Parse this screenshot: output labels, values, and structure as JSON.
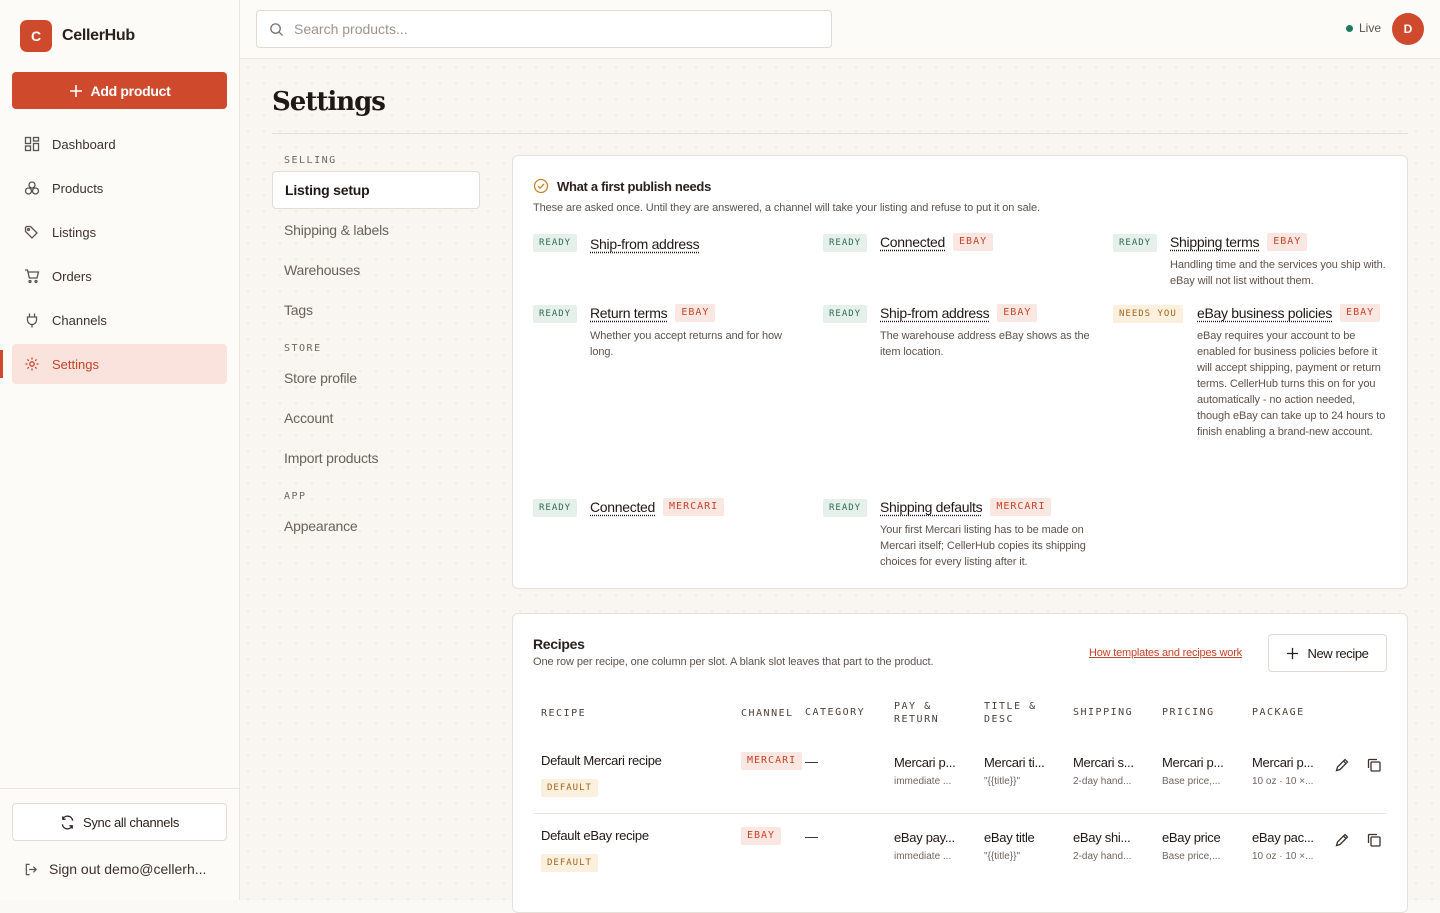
{
  "brand": {
    "logo_letter": "C",
    "name": "CellerHub",
    "accent": "#cf4a2d"
  },
  "sidebar": {
    "add_product": "Add product",
    "items": [
      {
        "label": "Dashboard",
        "icon": "dashboard-icon"
      },
      {
        "label": "Products",
        "icon": "products-icon"
      },
      {
        "label": "Listings",
        "icon": "tag-icon"
      },
      {
        "label": "Orders",
        "icon": "cart-icon"
      },
      {
        "label": "Channels",
        "icon": "plug-icon"
      },
      {
        "label": "Settings",
        "icon": "gear-icon",
        "active": true
      }
    ],
    "sync": "Sync all channels",
    "signout": "Sign out demo@cellerh..."
  },
  "topbar": {
    "search_placeholder": "Search products...",
    "status": "Live",
    "avatar": "D"
  },
  "page": {
    "title": "Settings"
  },
  "subnav": {
    "selling_head": "SELLING",
    "selling": [
      "Listing setup",
      "Shipping & labels",
      "Warehouses",
      "Tags"
    ],
    "store_head": "STORE",
    "store": [
      "Store profile",
      "Account",
      "Import products"
    ],
    "app_head": "APP",
    "app": [
      "Appearance"
    ]
  },
  "publish": {
    "title": "What a first publish needs",
    "subtitle": "These are asked once. Until they are answered, a channel will take your listing and refuse to put it on sale.",
    "items": [
      {
        "status": "READY",
        "title": "Ship-from address",
        "tag": "",
        "desc": ""
      },
      {
        "status": "READY",
        "title": "Connected",
        "tag": "EBAY",
        "desc": ""
      },
      {
        "status": "READY",
        "title": "Shipping terms",
        "tag": "EBAY",
        "desc": "Handling time and the services you ship with. eBay will not list without them."
      },
      {
        "status": "READY",
        "title": "Return terms",
        "tag": "EBAY",
        "desc": "Whether you accept returns and for how long."
      },
      {
        "status": "READY",
        "title": "Ship-from address",
        "tag": "EBAY",
        "desc": "The warehouse address eBay shows as the item location."
      },
      {
        "status": "NEEDS YOU",
        "title": "eBay business policies",
        "tag": "EBAY",
        "desc": "eBay requires your account to be enabled for business policies before it will accept shipping, payment or return terms. CellerHub turns this on for you automatically - no action needed, though eBay can take up to 24 hours to finish enabling a brand-new account."
      },
      {
        "status": "READY",
        "title": "Connected",
        "tag": "MERCARI",
        "desc": ""
      },
      {
        "status": "READY",
        "title": "Shipping defaults",
        "tag": "MERCARI",
        "desc": "Your first Mercari listing has to be made on Mercari itself; CellerHub copies its shipping choices for every listing after it."
      }
    ]
  },
  "recipes": {
    "title": "Recipes",
    "subtitle": "One row per recipe, one column per slot. A blank slot leaves that part to the product.",
    "help_link": "How templates and recipes work",
    "new_button": "New recipe",
    "columns": [
      "RECIPE",
      "CHANNEL",
      "CATEGORY",
      "PAY & RETURN",
      "TITLE & DESC",
      "SHIPPING",
      "PRICING",
      "PACKAGE"
    ],
    "rows": [
      {
        "name": "Default Mercari recipe",
        "badge": "DEFAULT",
        "channel": "MERCARI",
        "category": "—",
        "pay": "Mercari p...",
        "pay_sub": "immediate ...",
        "title": "Mercari ti...",
        "title_sub": "\"{{title}}\"",
        "shipping": "Mercari s...",
        "shipping_sub": "2-day hand...",
        "pricing": "Mercari p...",
        "pricing_sub": "Base price,...",
        "package": "Mercari p...",
        "package_sub": "10 oz · 10 ×..."
      },
      {
        "name": "Default eBay recipe",
        "badge": "DEFAULT",
        "channel": "EBAY",
        "category": "—",
        "pay": "eBay pay...",
        "pay_sub": "immediate ...",
        "title": "eBay title",
        "title_sub": "\"{{title}}\"",
        "shipping": "eBay shi...",
        "shipping_sub": "2-day hand...",
        "pricing": "eBay price",
        "pricing_sub": "Base price,...",
        "package": "eBay pac...",
        "package_sub": "10 oz · 10 ×..."
      }
    ]
  }
}
